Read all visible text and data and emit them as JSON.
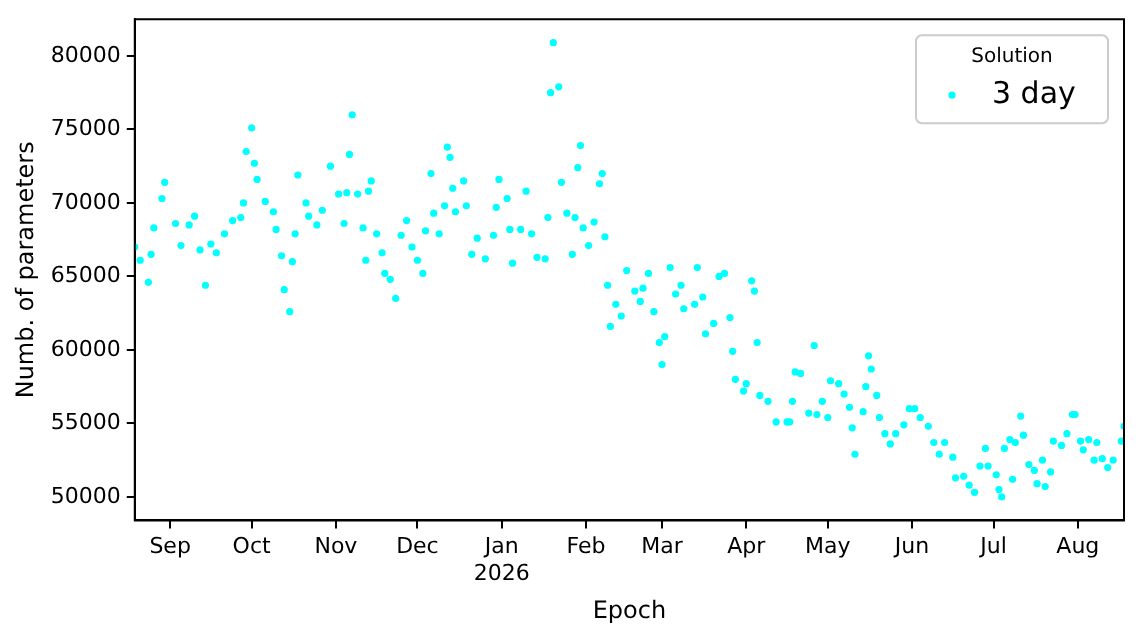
{
  "chart_data": {
    "type": "scatter",
    "xlabel": "Epoch",
    "ylabel": "Numb. of parameters",
    "legend_title": "Solution",
    "legend": "top right",
    "marker": "circle",
    "grid": false,
    "xlim": [
      "2025-08-19",
      "2026-08-18"
    ],
    "xticks": [
      {
        "value": "2025-09-01",
        "label": "Sep"
      },
      {
        "value": "2025-10-01",
        "label": "Oct"
      },
      {
        "value": "2025-11-01",
        "label": "Nov"
      },
      {
        "value": "2025-12-01",
        "label": "Dec"
      },
      {
        "value": "2026-01-01",
        "label": "Jan\n2026"
      },
      {
        "value": "2026-02-01",
        "label": "Feb"
      },
      {
        "value": "2026-03-01",
        "label": "Mar"
      },
      {
        "value": "2026-04-01",
        "label": "Apr"
      },
      {
        "value": "2026-05-01",
        "label": "May"
      },
      {
        "value": "2026-06-01",
        "label": "Jun"
      },
      {
        "value": "2026-07-01",
        "label": "Jul"
      },
      {
        "value": "2026-08-01",
        "label": "Aug"
      }
    ],
    "ylim": [
      48400,
      82500
    ],
    "yticks": [
      50000,
      55000,
      60000,
      65000,
      70000,
      75000,
      80000
    ],
    "series": [
      {
        "name": "3 day",
        "color": "#00ffff",
        "x": [
          "2025-08-19",
          "2025-08-21",
          "2025-08-24",
          "2025-08-25",
          "2025-08-26",
          "2025-08-29",
          "2025-08-30",
          "2025-09-03",
          "2025-09-05",
          "2025-09-08",
          "2025-09-10",
          "2025-09-12",
          "2025-09-14",
          "2025-09-16",
          "2025-09-18",
          "2025-09-21",
          "2025-09-24",
          "2025-09-27",
          "2025-09-28",
          "2025-09-29",
          "2025-10-01",
          "2025-10-02",
          "2025-10-03",
          "2025-10-06",
          "2025-10-09",
          "2025-10-10",
          "2025-10-12",
          "2025-10-13",
          "2025-10-15",
          "2025-10-16",
          "2025-10-17",
          "2025-10-18",
          "2025-10-21",
          "2025-10-22",
          "2025-10-25",
          "2025-10-27",
          "2025-10-30",
          "2025-11-02",
          "2025-11-04",
          "2025-11-05",
          "2025-11-06",
          "2025-11-07",
          "2025-11-09",
          "2025-11-11",
          "2025-11-12",
          "2025-11-13",
          "2025-11-14",
          "2025-11-16",
          "2025-11-18",
          "2025-11-19",
          "2025-11-21",
          "2025-11-23",
          "2025-11-25",
          "2025-11-27",
          "2025-11-29",
          "2025-12-01",
          "2025-12-03",
          "2025-12-04",
          "2025-12-06",
          "2025-12-07",
          "2025-12-09",
          "2025-12-11",
          "2025-12-12",
          "2025-12-13",
          "2025-12-14",
          "2025-12-15",
          "2025-12-18",
          "2025-12-19",
          "2025-12-21",
          "2025-12-23",
          "2025-12-26",
          "2025-12-29",
          "2025-12-30",
          "2025-12-31",
          "2026-01-03",
          "2026-01-04",
          "2026-01-05",
          "2026-01-08",
          "2026-01-10",
          "2026-01-12",
          "2026-01-14",
          "2026-01-17",
          "2026-01-18",
          "2026-01-19",
          "2026-01-20",
          "2026-01-22",
          "2026-01-23",
          "2026-01-25",
          "2026-01-27",
          "2026-01-28",
          "2026-01-29",
          "2026-01-30",
          "2026-01-31",
          "2026-02-02",
          "2026-02-04",
          "2026-02-06",
          "2026-02-07",
          "2026-02-08",
          "2026-02-09",
          "2026-02-10",
          "2026-02-12",
          "2026-02-14",
          "2026-02-16",
          "2026-02-19",
          "2026-02-21",
          "2026-02-22",
          "2026-02-24",
          "2026-02-26",
          "2026-02-28",
          "2026-03-01",
          "2026-03-02",
          "2026-03-04",
          "2026-03-06",
          "2026-03-08",
          "2026-03-09",
          "2026-03-13",
          "2026-03-14",
          "2026-03-16",
          "2026-03-17",
          "2026-03-20",
          "2026-03-22",
          "2026-03-24",
          "2026-03-26",
          "2026-03-27",
          "2026-03-28",
          "2026-03-31",
          "2026-04-01",
          "2026-04-03",
          "2026-04-04",
          "2026-04-05",
          "2026-04-06",
          "2026-04-09",
          "2026-04-12",
          "2026-04-16",
          "2026-04-17",
          "2026-04-18",
          "2026-04-19",
          "2026-04-21",
          "2026-04-24",
          "2026-04-26",
          "2026-04-27",
          "2026-04-29",
          "2026-05-01",
          "2026-05-02",
          "2026-05-05",
          "2026-05-07",
          "2026-05-09",
          "2026-05-10",
          "2026-05-11",
          "2026-05-14",
          "2026-05-15",
          "2026-05-16",
          "2026-05-17",
          "2026-05-19",
          "2026-05-20",
          "2026-05-22",
          "2026-05-24",
          "2026-05-26",
          "2026-05-29",
          "2026-05-31",
          "2026-06-02",
          "2026-06-04",
          "2026-06-07",
          "2026-06-09",
          "2026-06-11",
          "2026-06-13",
          "2026-06-16",
          "2026-06-17",
          "2026-06-20",
          "2026-06-22",
          "2026-06-24",
          "2026-06-26",
          "2026-06-28",
          "2026-06-29",
          "2026-07-02",
          "2026-07-03",
          "2026-07-04",
          "2026-07-05",
          "2026-07-07",
          "2026-07-08",
          "2026-07-09",
          "2026-07-11",
          "2026-07-12",
          "2026-07-14",
          "2026-07-16",
          "2026-07-17",
          "2026-07-19",
          "2026-07-20",
          "2026-07-22",
          "2026-07-23",
          "2026-07-26",
          "2026-07-28",
          "2026-07-30",
          "2026-07-31",
          "2026-08-02",
          "2026-08-03",
          "2026-08-05",
          "2026-08-07",
          "2026-08-08",
          "2026-08-10",
          "2026-08-12",
          "2026-08-14",
          "2026-08-17",
          "2026-08-18"
        ],
        "values": [
          67000,
          66100,
          64600,
          66500,
          68300,
          70300,
          71400,
          68600,
          67100,
          68500,
          69100,
          66800,
          64400,
          67200,
          66600,
          67900,
          68800,
          69000,
          70000,
          73500,
          75100,
          72700,
          71600,
          70100,
          69400,
          68200,
          66400,
          64100,
          62600,
          66000,
          67900,
          71900,
          70000,
          69100,
          68500,
          69500,
          72500,
          70600,
          68600,
          70700,
          73300,
          76000,
          70600,
          68300,
          66100,
          70800,
          71500,
          67900,
          66600,
          65200,
          64800,
          63500,
          67800,
          68800,
          67000,
          66100,
          65200,
          68100,
          72000,
          69300,
          67900,
          69800,
          73800,
          73100,
          71000,
          69400,
          71500,
          69800,
          66500,
          67600,
          66200,
          67800,
          69700,
          71600,
          70300,
          68200,
          65900,
          68200,
          70800,
          67900,
          66300,
          66200,
          69000,
          77500,
          80900,
          77900,
          71400,
          69300,
          66500,
          69000,
          72400,
          73900,
          68300,
          67100,
          68700,
          71300,
          72000,
          67700,
          64400,
          61600,
          63100,
          62300,
          65400,
          64000,
          63300,
          64200,
          65200,
          62600,
          60500,
          59000,
          60900,
          65600,
          63800,
          64400,
          62800,
          63100,
          65600,
          63600,
          61100,
          61800,
          65000,
          65200,
          62200,
          59900,
          58000,
          57200,
          57700,
          64700,
          64000,
          60500,
          56900,
          56500,
          55100,
          55100,
          55100,
          56500,
          58500,
          58400,
          55700,
          60300,
          55600,
          56500,
          55400,
          57900,
          57700,
          57000,
          56100,
          54700,
          52900,
          55800,
          57500,
          59600,
          58700,
          56900,
          55400,
          54300,
          53600,
          54300,
          54900,
          56000,
          56000,
          55400,
          54800,
          53700,
          52900,
          53700,
          52700,
          51300,
          51400,
          50800,
          50300,
          52100,
          53300,
          52100,
          51500,
          50500,
          50000,
          53300,
          53900,
          51200,
          53700,
          55500,
          54200,
          52200,
          51800,
          50900,
          52500,
          50700,
          51700,
          53800,
          53500,
          54300,
          55600,
          55600,
          53800,
          53200,
          53900,
          52500,
          53700,
          52600,
          52000,
          52500,
          53800,
          54800
        ]
      }
    ]
  }
}
